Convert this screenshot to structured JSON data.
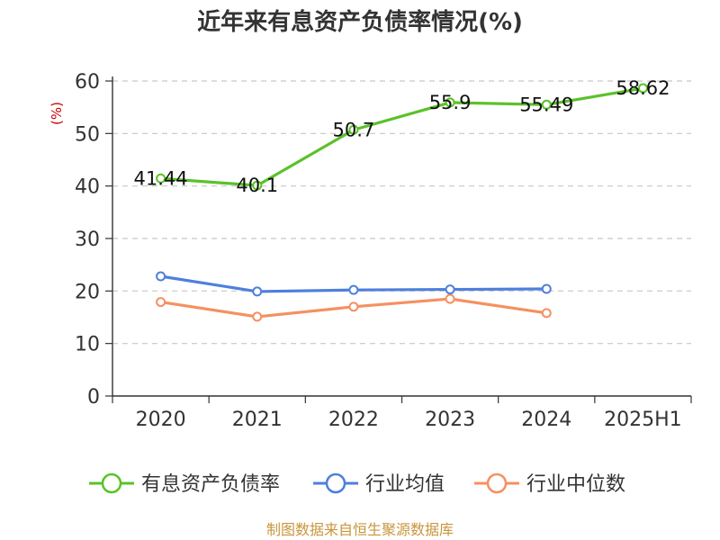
{
  "chart_data": {
    "type": "line",
    "title": "近年来有息资产负债率情况(%)",
    "ylabel": "(%)",
    "categories": [
      "2020",
      "2021",
      "2022",
      "2023",
      "2024",
      "2025H1"
    ],
    "ylim": [
      0,
      60
    ],
    "yticks": [
      0,
      10,
      20,
      30,
      40,
      50,
      60
    ],
    "grid": true,
    "legend_position": "bottom",
    "series": [
      {
        "name": "有息资产负债率",
        "color": "#5ac229",
        "values": [
          41.44,
          40.1,
          50.7,
          55.9,
          55.49,
          58.62
        ],
        "labels": [
          "41.44",
          "40.1",
          "50.7",
          "55.9",
          "55.49",
          "58.62"
        ]
      },
      {
        "name": "行业均值",
        "color": "#4e7fdc",
        "values": [
          22.8,
          19.9,
          20.2,
          20.3,
          20.4,
          null
        ]
      },
      {
        "name": "行业中位数",
        "color": "#f59061",
        "values": [
          17.9,
          15.1,
          17.0,
          18.5,
          15.8,
          null
        ]
      }
    ]
  },
  "footer": {
    "source": "制图数据来自恒生聚源数据库"
  }
}
